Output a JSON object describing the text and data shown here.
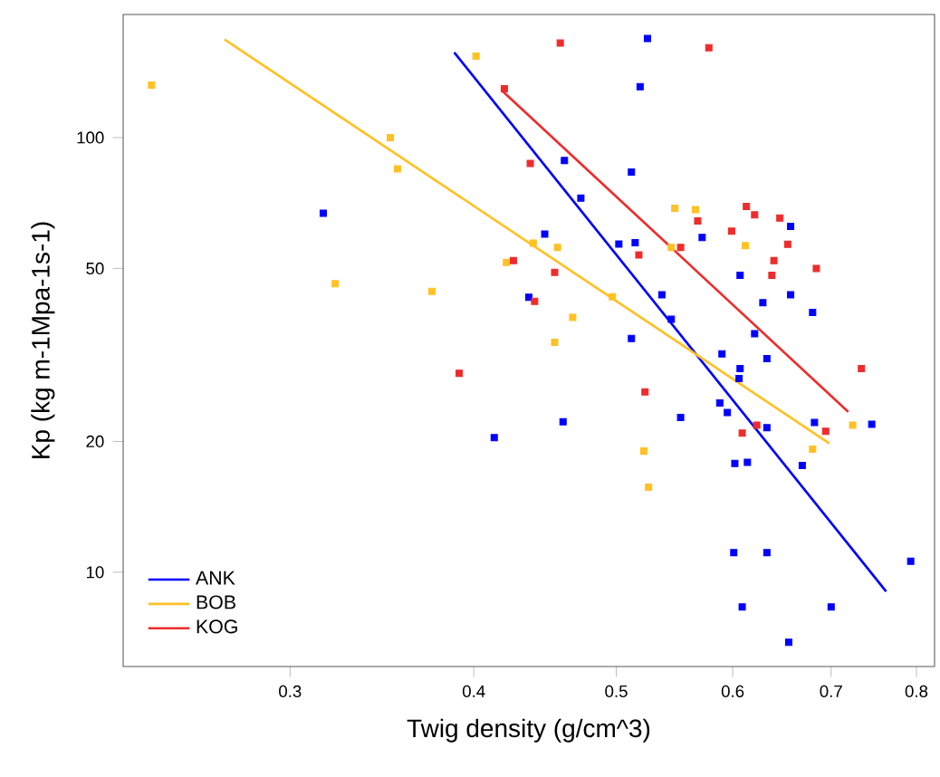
{
  "chart_data": {
    "type": "scatter",
    "xlabel": "Twig density (g/cm^3)",
    "ylabel": "Kp (kg m-1Mpa-1s-1)",
    "log": "xy",
    "xlim": [
      0.231,
      0.823
    ],
    "ylim": [
      6.07,
      192
    ],
    "xticks": [
      0.3,
      0.4,
      0.5,
      0.6,
      0.7,
      0.8
    ],
    "yticks": [
      10,
      20,
      50,
      100
    ],
    "legend": "bottom left",
    "series": [
      {
        "marker": "square",
        "color": "#0000ff",
        "x": [
          0.316,
          0.413,
          0.525,
          0.519,
          0.461,
          0.512,
          0.473,
          0.657,
          0.572,
          0.447,
          0.502,
          0.515,
          0.607,
          0.537,
          0.657,
          0.436,
          0.629,
          0.68,
          0.545,
          0.512,
          0.59,
          0.633,
          0.607,
          0.606,
          0.588,
          0.595,
          0.46,
          0.553,
          0.633,
          0.682,
          0.746,
          0.602,
          0.614,
          0.669,
          0.601,
          0.633,
          0.793,
          0.609,
          0.7,
          0.655,
          0.621
        ],
        "values": [
          67,
          20.4,
          169,
          131,
          88.6,
          83.3,
          72.6,
          62.5,
          58.9,
          60.0,
          56.9,
          57.3,
          48.2,
          43.5,
          43.5,
          42.9,
          41.7,
          39.6,
          38.2,
          34.5,
          31.8,
          31.0,
          29.4,
          27.9,
          24.5,
          23.3,
          22.2,
          22.7,
          21.5,
          22.1,
          21.9,
          17.8,
          17.9,
          17.6,
          11.1,
          11.1,
          10.6,
          8.32,
          8.32,
          6.9,
          35.4
        ]
      },
      {
        "marker": "square",
        "color": "#ffc125",
        "x": [
          0.2415,
          0.351,
          0.355,
          0.322,
          0.3746,
          0.421,
          0.4014,
          0.548,
          0.566,
          0.439,
          0.456,
          0.545,
          0.612,
          0.497,
          0.467,
          0.454,
          0.724,
          0.68,
          0.522,
          0.526
        ],
        "values": [
          132,
          100,
          84.7,
          46.1,
          44.3,
          51.6,
          154,
          68.8,
          68.3,
          57.2,
          55.9,
          55.9,
          56.4,
          43.0,
          38.6,
          33.8,
          21.8,
          19.2,
          19.0,
          15.7
        ]
      },
      {
        "marker": "square",
        "color": "#ee2c2c",
        "x": [
          0.4256,
          0.4196,
          0.458,
          0.578,
          0.437,
          0.613,
          0.621,
          0.646,
          0.568,
          0.599,
          0.553,
          0.654,
          0.518,
          0.64,
          0.684,
          0.454,
          0.638,
          0.44,
          0.391,
          0.523,
          0.734,
          0.623,
          0.609,
          0.694
        ],
        "values": [
          52.1,
          129.6,
          165,
          161,
          87.2,
          69.4,
          66.4,
          65.3,
          64.3,
          60.9,
          55.9,
          56.8,
          53.7,
          52.1,
          50.0,
          49.0,
          48.2,
          42.0,
          28.7,
          26.0,
          29.4,
          21.8,
          20.9,
          21.1
        ]
      },
      {
        "type": "line",
        "name": "ANK",
        "marker": "none",
        "line_style": "solid",
        "color": "#0000ff",
        "x": [
          0.388,
          0.763
        ],
        "values": [
          157,
          9.03
        ]
      },
      {
        "type": "line",
        "name": "BOB",
        "marker": "none",
        "line_style": "solid",
        "color": "#ffc125",
        "x": [
          0.2707,
          0.698
        ],
        "values": [
          168.2,
          19.8
        ]
      },
      {
        "type": "line",
        "name": "KOG",
        "marker": "none",
        "line_style": "solid",
        "color": "#ee2c2c",
        "x": [
          0.418,
          0.719
        ],
        "values": [
          128.3,
          23.4
        ]
      }
    ]
  }
}
